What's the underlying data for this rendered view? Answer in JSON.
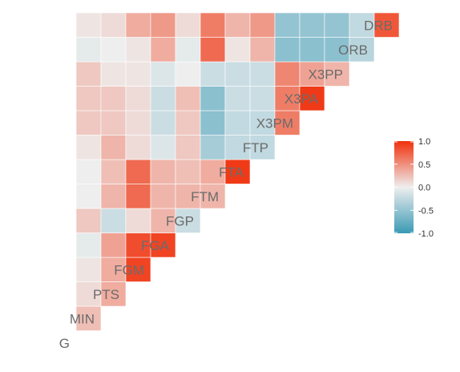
{
  "chart_data": {
    "type": "heatmap",
    "layout": "lower-triangle",
    "title": "",
    "variables": [
      "G",
      "MIN",
      "PTS",
      "FGM",
      "FGA",
      "FGP",
      "FTM",
      "FTA",
      "FTP",
      "X3PM",
      "X3PA",
      "X3PP",
      "ORB",
      "DRB"
    ],
    "matrix": [
      [],
      [
        0.25
      ],
      [
        0.1,
        0.35
      ],
      [
        0.05,
        0.35,
        0.9
      ],
      [
        -0.05,
        0.4,
        0.85,
        0.9
      ],
      [
        0.2,
        -0.2,
        0.1,
        0.3,
        -0.2
      ],
      [
        0.0,
        0.3,
        0.7,
        0.3,
        0.3,
        0.3
      ],
      [
        0.0,
        0.25,
        0.7,
        0.3,
        0.25,
        0.35,
        0.95
      ],
      [
        0.05,
        0.3,
        0.1,
        -0.1,
        0.2,
        -0.4,
        -0.25,
        -0.25
      ],
      [
        0.2,
        0.2,
        0.1,
        -0.2,
        0.2,
        -0.55,
        -0.25,
        -0.25,
        0.6
      ],
      [
        0.2,
        0.2,
        0.1,
        -0.2,
        0.25,
        -0.55,
        -0.2,
        -0.2,
        0.6,
        0.95
      ],
      [
        0.2,
        0.05,
        0.05,
        -0.1,
        0.0,
        -0.2,
        -0.2,
        -0.2,
        0.55,
        0.4,
        0.3
      ],
      [
        -0.05,
        0.0,
        0.05,
        0.35,
        -0.05,
        0.7,
        0.05,
        0.3,
        -0.55,
        -0.55,
        -0.55,
        -0.3
      ],
      [
        0.05,
        0.1,
        0.35,
        0.45,
        0.1,
        0.6,
        0.3,
        0.45,
        -0.5,
        -0.5,
        -0.5,
        -0.25,
        0.8
      ]
    ],
    "legend": {
      "ticks": [
        "1.0",
        "0.5",
        "0.0",
        "-0.5",
        "-1.0"
      ],
      "tick_values": [
        1.0,
        0.5,
        0.0,
        -0.5,
        -1.0
      ],
      "range": [
        -1,
        1
      ],
      "placement": "right"
    },
    "colors": {
      "low": "#3a9ab5",
      "mid": "#eeeeee",
      "high": "#f0310c"
    }
  }
}
